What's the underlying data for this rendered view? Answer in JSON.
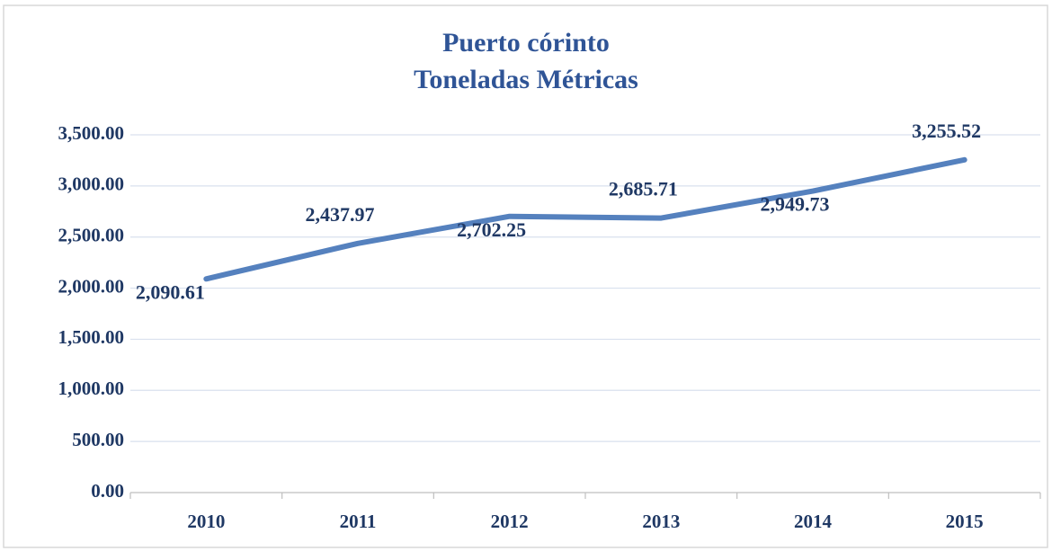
{
  "chart_data": {
    "type": "line",
    "title": [
      "Puerto córinto",
      "Toneladas Métricas"
    ],
    "categories": [
      "2010",
      "2011",
      "2012",
      "2013",
      "2014",
      "2015"
    ],
    "series": [
      {
        "name": "Toneladas Métricas",
        "color": "#5581be",
        "values": [
          2090.61,
          2437.97,
          2702.25,
          2685.71,
          2949.73,
          3255.52
        ],
        "value_labels": [
          "2,090.61",
          "2,437.97",
          "2,702.25",
          "2,685.71",
          "2,949.73",
          "3,255.52"
        ]
      }
    ],
    "ylim": [
      0,
      3500
    ],
    "yticks": [
      {
        "value": 0,
        "label": "0.00"
      },
      {
        "value": 500,
        "label": "500.00"
      },
      {
        "value": 1000,
        "label": "1,000.00"
      },
      {
        "value": 1500,
        "label": "1,500.00"
      },
      {
        "value": 2000,
        "label": "2,000.00"
      },
      {
        "value": 2500,
        "label": "2,500.00"
      },
      {
        "value": 3000,
        "label": "3,000.00"
      },
      {
        "value": 3500,
        "label": "3,500.00"
      }
    ],
    "grid": true
  }
}
